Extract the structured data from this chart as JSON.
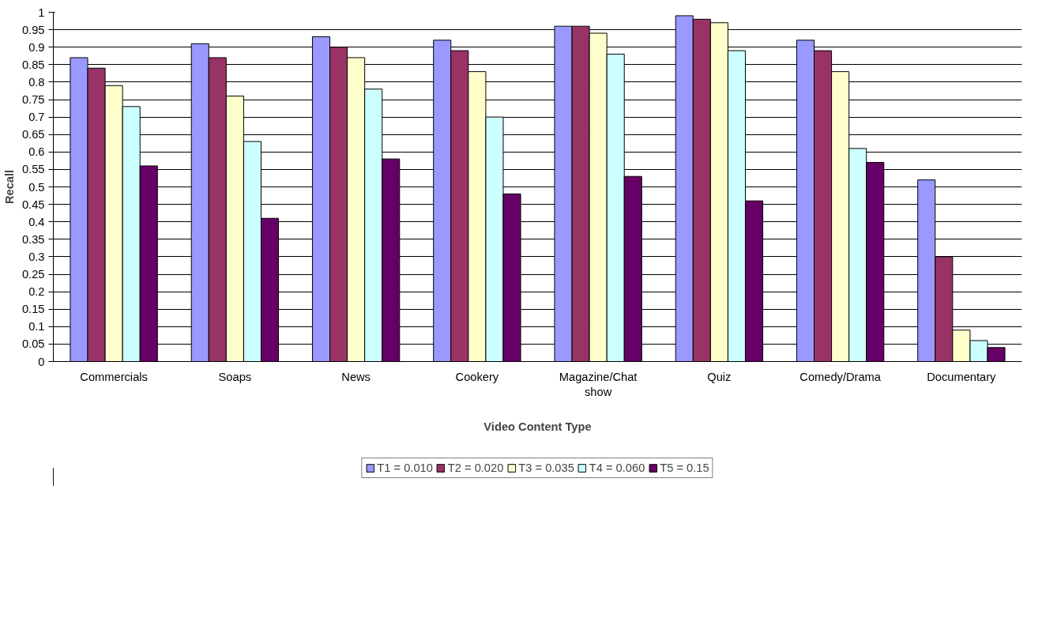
{
  "chart_data": {
    "type": "bar",
    "xlabel": "Video Content Type",
    "ylabel": "Recall",
    "categories": [
      "Commercials",
      "Soaps",
      "News",
      "Cookery",
      "Magazine/Chat show",
      "Quiz",
      "Comedy/Drama",
      "Documentary"
    ],
    "series": [
      {
        "name": "T1 = 0.010",
        "color": "#9999ff",
        "values": [
          0.87,
          0.91,
          0.93,
          0.92,
          0.96,
          0.99,
          0.92,
          0.52
        ]
      },
      {
        "name": "T2 = 0.020",
        "color": "#993366",
        "values": [
          0.84,
          0.87,
          0.9,
          0.89,
          0.96,
          0.98,
          0.89,
          0.3
        ]
      },
      {
        "name": "T3 = 0.035",
        "color": "#ffffcc",
        "values": [
          0.79,
          0.76,
          0.87,
          0.83,
          0.94,
          0.97,
          0.83,
          0.09
        ]
      },
      {
        "name": "T4 = 0.060",
        "color": "#ccffff",
        "values": [
          0.73,
          0.63,
          0.78,
          0.7,
          0.88,
          0.89,
          0.61,
          0.06
        ]
      },
      {
        "name": "T5 = 0.15",
        "color": "#660066",
        "values": [
          0.56,
          0.41,
          0.58,
          0.48,
          0.53,
          0.46,
          0.57,
          0.04
        ]
      }
    ],
    "ylim": [
      0,
      1
    ],
    "yticks": [
      0,
      0.05,
      0.1,
      0.15,
      0.2,
      0.25,
      0.3,
      0.35,
      0.4,
      0.45,
      0.5,
      0.55,
      0.6,
      0.65,
      0.7,
      0.75,
      0.8,
      0.85,
      0.9,
      0.95,
      1
    ],
    "grid": "y",
    "legend": "bottom"
  }
}
